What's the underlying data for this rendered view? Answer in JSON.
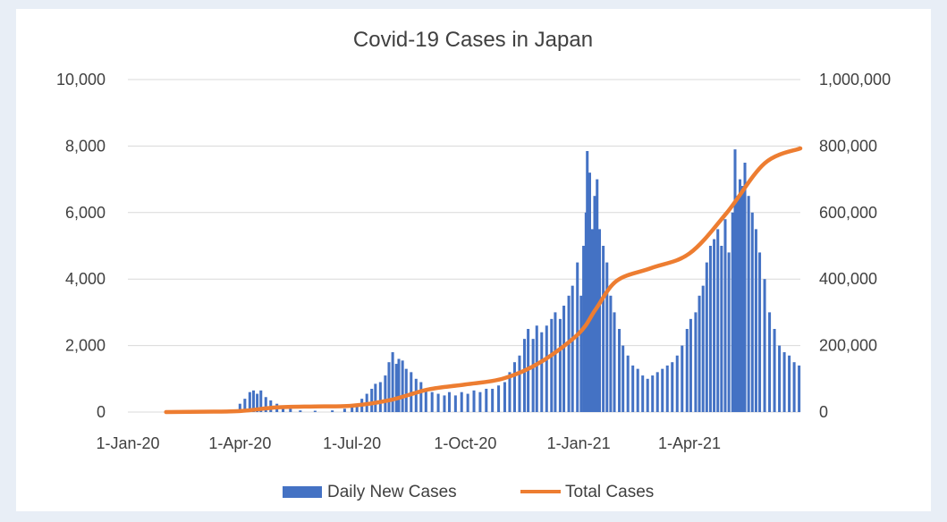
{
  "chart_data": {
    "type": "bar+line",
    "title": "Covid-19 Cases in Japan",
    "x_tick_labels": [
      "1-Jan-20",
      "1-Apr-20",
      "1-Jul-20",
      "1-Oct-20",
      "1-Jan-21",
      "1-Apr-21"
    ],
    "x_tick_dates": [
      "2020-01-01",
      "2020-04-01",
      "2020-07-01",
      "2020-10-01",
      "2021-01-01",
      "2021-04-01"
    ],
    "x_range": [
      "2020-01-01",
      "2021-06-30"
    ],
    "y_left": {
      "range": [
        0,
        10000
      ],
      "ticks": [
        "0",
        "2,000",
        "4,000",
        "6,000",
        "8,000",
        "10,000"
      ]
    },
    "y_right": {
      "range": [
        0,
        1000000
      ],
      "ticks": [
        "0",
        "200,000",
        "400,000",
        "600,000",
        "800,000",
        "1,000,000"
      ]
    },
    "grid": true,
    "legend_position": "bottom",
    "colors": {
      "bars": "#4472c4",
      "line": "#ed7d31",
      "grid": "#d9d9d9",
      "text": "#404040"
    },
    "series": [
      {
        "name": "Daily New Cases",
        "kind": "bar",
        "axis": "left",
        "points": [
          [
            "2020-03-15",
            50
          ],
          [
            "2020-04-01",
            250
          ],
          [
            "2020-04-05",
            400
          ],
          [
            "2020-04-09",
            600
          ],
          [
            "2020-04-12",
            650
          ],
          [
            "2020-04-15",
            550
          ],
          [
            "2020-04-18",
            650
          ],
          [
            "2020-04-22",
            450
          ],
          [
            "2020-04-26",
            350
          ],
          [
            "2020-05-01",
            250
          ],
          [
            "2020-05-06",
            150
          ],
          [
            "2020-05-12",
            100
          ],
          [
            "2020-05-20",
            50
          ],
          [
            "2020-06-01",
            40
          ],
          [
            "2020-06-15",
            50
          ],
          [
            "2020-06-25",
            100
          ],
          [
            "2020-07-01",
            150
          ],
          [
            "2020-07-05",
            250
          ],
          [
            "2020-07-09",
            400
          ],
          [
            "2020-07-13",
            550
          ],
          [
            "2020-07-17",
            700
          ],
          [
            "2020-07-20",
            850
          ],
          [
            "2020-07-24",
            900
          ],
          [
            "2020-07-28",
            1100
          ],
          [
            "2020-07-31",
            1500
          ],
          [
            "2020-08-03",
            1800
          ],
          [
            "2020-08-06",
            1450
          ],
          [
            "2020-08-08",
            1600
          ],
          [
            "2020-08-11",
            1550
          ],
          [
            "2020-08-14",
            1300
          ],
          [
            "2020-08-18",
            1200
          ],
          [
            "2020-08-22",
            1000
          ],
          [
            "2020-08-26",
            900
          ],
          [
            "2020-08-30",
            700
          ],
          [
            "2020-09-04",
            600
          ],
          [
            "2020-09-09",
            550
          ],
          [
            "2020-09-14",
            500
          ],
          [
            "2020-09-18",
            600
          ],
          [
            "2020-09-23",
            500
          ],
          [
            "2020-09-28",
            600
          ],
          [
            "2020-10-03",
            550
          ],
          [
            "2020-10-08",
            650
          ],
          [
            "2020-10-13",
            600
          ],
          [
            "2020-10-18",
            700
          ],
          [
            "2020-10-23",
            700
          ],
          [
            "2020-10-28",
            800
          ],
          [
            "2020-11-02",
            900
          ],
          [
            "2020-11-06",
            1200
          ],
          [
            "2020-11-10",
            1500
          ],
          [
            "2020-11-14",
            1700
          ],
          [
            "2020-11-18",
            2200
          ],
          [
            "2020-11-21",
            2500
          ],
          [
            "2020-11-25",
            2200
          ],
          [
            "2020-11-28",
            2600
          ],
          [
            "2020-12-02",
            2400
          ],
          [
            "2020-12-06",
            2600
          ],
          [
            "2020-12-10",
            2800
          ],
          [
            "2020-12-13",
            3000
          ],
          [
            "2020-12-17",
            2800
          ],
          [
            "2020-12-20",
            3200
          ],
          [
            "2020-12-24",
            3500
          ],
          [
            "2020-12-27",
            3800
          ],
          [
            "2020-12-31",
            4500
          ],
          [
            "2021-01-03",
            3500
          ],
          [
            "2021-01-05",
            5000
          ],
          [
            "2021-01-07",
            6000
          ],
          [
            "2021-01-08",
            7850
          ],
          [
            "2021-01-10",
            7200
          ],
          [
            "2021-01-12",
            5500
          ],
          [
            "2021-01-14",
            6500
          ],
          [
            "2021-01-16",
            7000
          ],
          [
            "2021-01-18",
            5500
          ],
          [
            "2021-01-21",
            5000
          ],
          [
            "2021-01-24",
            4500
          ],
          [
            "2021-01-27",
            3500
          ],
          [
            "2021-01-30",
            3000
          ],
          [
            "2021-02-03",
            2500
          ],
          [
            "2021-02-06",
            2000
          ],
          [
            "2021-02-10",
            1700
          ],
          [
            "2021-02-14",
            1400
          ],
          [
            "2021-02-18",
            1300
          ],
          [
            "2021-02-22",
            1100
          ],
          [
            "2021-02-26",
            1000
          ],
          [
            "2021-03-02",
            1100
          ],
          [
            "2021-03-06",
            1200
          ],
          [
            "2021-03-10",
            1300
          ],
          [
            "2021-03-14",
            1400
          ],
          [
            "2021-03-18",
            1500
          ],
          [
            "2021-03-22",
            1700
          ],
          [
            "2021-03-26",
            2000
          ],
          [
            "2021-03-30",
            2500
          ],
          [
            "2021-04-02",
            2800
          ],
          [
            "2021-04-06",
            3000
          ],
          [
            "2021-04-09",
            3500
          ],
          [
            "2021-04-12",
            3800
          ],
          [
            "2021-04-15",
            4500
          ],
          [
            "2021-04-18",
            5000
          ],
          [
            "2021-04-21",
            5200
          ],
          [
            "2021-04-24",
            5500
          ],
          [
            "2021-04-27",
            5000
          ],
          [
            "2021-04-30",
            5800
          ],
          [
            "2021-05-03",
            4800
          ],
          [
            "2021-05-06",
            6000
          ],
          [
            "2021-05-08",
            7900
          ],
          [
            "2021-05-10",
            6500
          ],
          [
            "2021-05-12",
            7000
          ],
          [
            "2021-05-14",
            6800
          ],
          [
            "2021-05-16",
            7500
          ],
          [
            "2021-05-19",
            6500
          ],
          [
            "2021-05-22",
            6000
          ],
          [
            "2021-05-25",
            5500
          ],
          [
            "2021-05-28",
            4800
          ],
          [
            "2021-06-01",
            4000
          ],
          [
            "2021-06-05",
            3000
          ],
          [
            "2021-06-09",
            2500
          ],
          [
            "2021-06-13",
            2000
          ],
          [
            "2021-06-17",
            1800
          ],
          [
            "2021-06-21",
            1700
          ],
          [
            "2021-06-25",
            1500
          ],
          [
            "2021-06-29",
            1400
          ]
        ]
      },
      {
        "name": "Total Cases",
        "kind": "line",
        "axis": "right",
        "points": [
          [
            "2020-02-01",
            0
          ],
          [
            "2020-03-01",
            1000
          ],
          [
            "2020-04-01",
            3000
          ],
          [
            "2020-05-01",
            14000
          ],
          [
            "2020-06-01",
            17000
          ],
          [
            "2020-07-01",
            19000
          ],
          [
            "2020-08-01",
            36000
          ],
          [
            "2020-09-01",
            68000
          ],
          [
            "2020-10-01",
            83000
          ],
          [
            "2020-11-01",
            101000
          ],
          [
            "2020-12-01",
            150000
          ],
          [
            "2021-01-01",
            236000
          ],
          [
            "2021-01-15",
            310000
          ],
          [
            "2021-02-01",
            395000
          ],
          [
            "2021-03-01",
            433000
          ],
          [
            "2021-04-01",
            477000
          ],
          [
            "2021-05-01",
            598000
          ],
          [
            "2021-06-01",
            748000
          ],
          [
            "2021-06-30",
            793000
          ]
        ]
      }
    ]
  }
}
